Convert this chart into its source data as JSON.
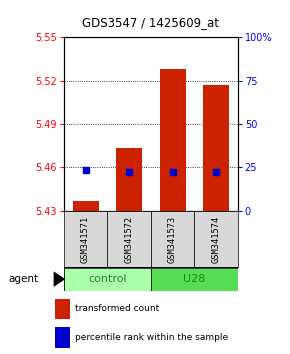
{
  "title": "GDS3547 / 1425609_at",
  "samples": [
    "GSM341571",
    "GSM341572",
    "GSM341573",
    "GSM341574"
  ],
  "bar_values": [
    5.437,
    5.473,
    5.528,
    5.517
  ],
  "bar_base": 5.43,
  "percentile_yvals": [
    5.458,
    5.457,
    5.457,
    5.457
  ],
  "ylim_left": [
    5.43,
    5.55
  ],
  "ylim_right": [
    0,
    100
  ],
  "yticks_left": [
    5.43,
    5.46,
    5.49,
    5.52,
    5.55
  ],
  "yticks_right": [
    0,
    25,
    50,
    75,
    100
  ],
  "ytick_labels_right": [
    "0",
    "25",
    "50",
    "75",
    "100%"
  ],
  "bar_color": "#cc2200",
  "percentile_color": "#0000cc",
  "group_colors_control": "#aaffaa",
  "group_colors_U28": "#55dd55",
  "group_label_color": "#228822",
  "bar_width": 0.6,
  "agent_label": "agent",
  "legend_items": [
    {
      "color": "#cc2200",
      "label": "transformed count"
    },
    {
      "color": "#0000cc",
      "label": "percentile rank within the sample"
    }
  ]
}
